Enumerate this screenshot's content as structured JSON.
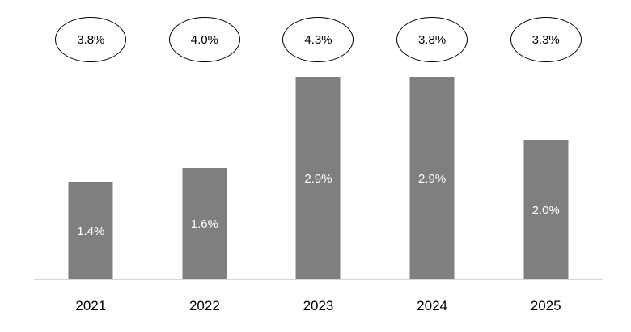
{
  "chart_data": {
    "type": "bar",
    "title": "",
    "xlabel": "",
    "ylabel": "",
    "categories": [
      "2021",
      "2022",
      "2023",
      "2024",
      "2025"
    ],
    "series": [
      {
        "name": "bar-values",
        "values": [
          1.4,
          1.6,
          2.9,
          2.9,
          2.0
        ]
      },
      {
        "name": "oval-annotation-values",
        "values": [
          3.8,
          4.0,
          4.3,
          3.8,
          3.3
        ]
      }
    ],
    "bar_labels": [
      "1.4%",
      "1.6%",
      "2.9%",
      "2.9%",
      "2.0%"
    ],
    "oval_labels": [
      "3.8%",
      "4.0%",
      "4.3%",
      "3.8%",
      "3.3%"
    ],
    "ylim": [
      0,
      2.9
    ],
    "grid": false,
    "legend": false,
    "bar_color": "#7f7f7f",
    "bar_label_color": "#ffffff",
    "oval_border_color": "#000000",
    "axis_line_color": "#d6d6d6"
  }
}
